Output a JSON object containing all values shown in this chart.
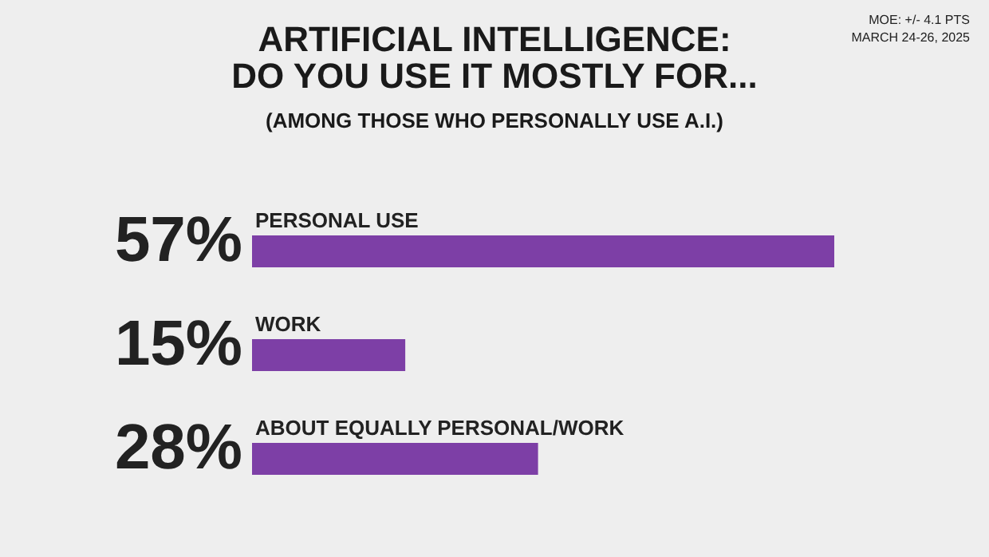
{
  "chart_data": {
    "type": "bar",
    "orientation": "horizontal",
    "title": "ARTIFICIAL INTELLIGENCE:\nDO YOU USE IT MOSTLY FOR...",
    "subtitle": "(AMONG THOSE WHO PERSONALLY USE A.I.)",
    "categories": [
      "PERSONAL USE",
      "WORK",
      "ABOUT EQUALLY PERSONAL/WORK"
    ],
    "values": [
      57,
      15,
      28
    ],
    "value_labels": [
      "57%",
      "15%",
      "28%"
    ],
    "color": "#7d3fa6",
    "annotations": [
      "MOE: +/- 4.1 PTS",
      "MARCH 24-26, 2025"
    ]
  }
}
